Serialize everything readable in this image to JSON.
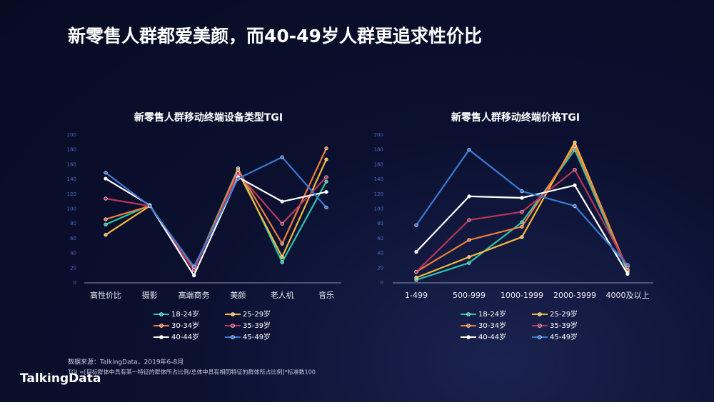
{
  "title": "新零售人群都爱美颜，而40-49岁人群更追求性价比",
  "source": "数据来源：TalkingData，2019年6-8月",
  "note": "TGI =[目标群体中具有某一特征的群体所占比例/总体中具有相同特征的群体所占比例]*标准数100",
  "logo": "TalkingData",
  "chart_data": [
    {
      "type": "line",
      "title": "新零售人群移动终端设备类型TGI",
      "categories": [
        "高性价比",
        "摄影",
        "高端商务",
        "美颜",
        "老人机",
        "音乐"
      ],
      "ylim": [
        0,
        200
      ],
      "yticks": [
        0,
        20,
        40,
        60,
        80,
        100,
        120,
        140,
        160,
        180,
        200
      ],
      "grid": false,
      "series": [
        {
          "name": "18-24岁",
          "color": "#2ec4a6",
          "values": [
            79,
            105,
            18,
            155,
            28,
            137
          ]
        },
        {
          "name": "25-29岁",
          "color": "#f5b83d",
          "values": [
            65,
            104,
            17,
            150,
            35,
            167
          ]
        },
        {
          "name": "30-34岁",
          "color": "#ef7e3c",
          "values": [
            86,
            104,
            18,
            153,
            53,
            182
          ]
        },
        {
          "name": "35-39岁",
          "color": "#b8365a",
          "values": [
            114,
            104,
            17,
            148,
            80,
            143
          ]
        },
        {
          "name": "40-44岁",
          "color": "#ffffff",
          "values": [
            141,
            105,
            10,
            143,
            110,
            123
          ]
        },
        {
          "name": "45-49岁",
          "color": "#3a7bd5",
          "values": [
            149,
            104,
            22,
            141,
            170,
            102
          ]
        }
      ]
    },
    {
      "type": "line",
      "title": "新零售人群移动终端价格TGI",
      "categories": [
        "1-499",
        "500-999",
        "1000-1999",
        "2000-3999",
        "4000及以上"
      ],
      "ylim": [
        0,
        200
      ],
      "yticks": [
        0,
        20,
        40,
        60,
        80,
        100,
        120,
        140,
        160,
        180,
        200
      ],
      "grid": false,
      "series": [
        {
          "name": "18-24岁",
          "color": "#2ec4a6",
          "values": [
            4,
            27,
            82,
            180,
            15
          ]
        },
        {
          "name": "25-29岁",
          "color": "#f5b83d",
          "values": [
            7,
            35,
            62,
            190,
            17
          ]
        },
        {
          "name": "30-34岁",
          "color": "#ef7e3c",
          "values": [
            15,
            58,
            76,
            185,
            18
          ]
        },
        {
          "name": "35-39岁",
          "color": "#b8365a",
          "values": [
            15,
            85,
            96,
            153,
            22
          ]
        },
        {
          "name": "40-44岁",
          "color": "#ffffff",
          "values": [
            42,
            117,
            115,
            132,
            12
          ]
        },
        {
          "name": "45-49岁",
          "color": "#3a7bd5",
          "values": [
            78,
            180,
            124,
            104,
            24
          ]
        }
      ]
    }
  ]
}
